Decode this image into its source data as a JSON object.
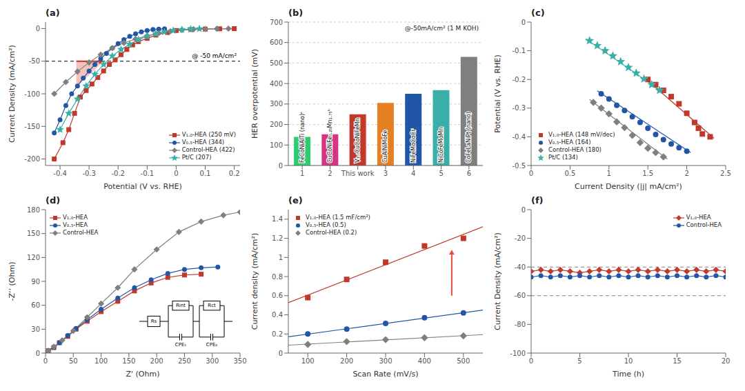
{
  "chart_data": [
    {
      "type": "line",
      "title": "(a)",
      "x_label": "Potential (V vs. RHE)",
      "y_label": "Current Density (mA/cm²)",
      "xlim": [
        -0.45,
        0.22
      ],
      "ylim": [
        -210,
        10
      ],
      "xticks": [
        -0.4,
        -0.3,
        -0.2,
        -0.1,
        0,
        0.1,
        0.2
      ],
      "yticks": [
        -200,
        -150,
        -100,
        -50,
        0
      ],
      "grid": false,
      "legend": "lower right",
      "hlines": [
        {
          "y": -50,
          "label": "@ -50 mA/cm²",
          "color": "black",
          "line_style": "dashed"
        }
      ],
      "highlight": {
        "x": [
          -0.344,
          -0.25,
          -0.344
        ],
        "y": [
          -50,
          -50,
          -90
        ],
        "color": "#e74c3c"
      },
      "arrow": {
        "x": [
          -0.344,
          -0.25
        ],
        "y": [
          -50,
          -50
        ],
        "color": "#c0392b"
      },
      "series": [
        {
          "name": "V₁.₀-HEA (250 mV)",
          "color": "#c0392b",
          "marker": "square",
          "x": [
            -0.42,
            -0.39,
            -0.37,
            -0.35,
            -0.33,
            -0.31,
            -0.29,
            -0.27,
            -0.25,
            -0.23,
            -0.21,
            -0.19,
            -0.17,
            -0.15,
            -0.13,
            -0.1,
            -0.07,
            -0.03,
            0.0,
            0.05,
            0.1,
            0.15,
            0.2
          ],
          "values": [
            -200,
            -175,
            -155,
            -130,
            -105,
            -95,
            -85,
            -75,
            -65,
            -55,
            -48,
            -40,
            -32,
            -25,
            -20,
            -15,
            -10,
            -6,
            -3,
            -1.5,
            -0.8,
            -0.3,
            -0.1
          ]
        },
        {
          "name": "V₀.₅-HEA (344)",
          "color": "#2155a5",
          "marker": "circle",
          "x": [
            -0.42,
            -0.4,
            -0.38,
            -0.36,
            -0.34,
            -0.32,
            -0.3,
            -0.28,
            -0.26,
            -0.24,
            -0.22,
            -0.2,
            -0.18,
            -0.16,
            -0.14,
            -0.12,
            -0.1,
            -0.08,
            -0.06,
            -0.04
          ],
          "values": [
            -160,
            -140,
            -118,
            -100,
            -88,
            -76,
            -65,
            -55,
            -46,
            -38,
            -30,
            -23,
            -17,
            -12,
            -8,
            -5,
            -3,
            -1.5,
            -0.8,
            -0.3
          ]
        },
        {
          "name": "Control-HEA (422)",
          "color": "#7f7f7f",
          "marker": "diamond",
          "x": [
            -0.42,
            -0.38,
            -0.34,
            -0.3,
            -0.26,
            -0.22,
            -0.18,
            -0.14,
            -0.1,
            -0.06,
            -0.02,
            0.02,
            0.06,
            0.1,
            0.14,
            0.18
          ],
          "values": [
            -100,
            -82,
            -66,
            -52,
            -40,
            -30,
            -22,
            -16,
            -11,
            -7,
            -4,
            -2,
            -1,
            -0.5,
            -0.2,
            -0.1
          ]
        },
        {
          "name": "Pt/C (207)",
          "color": "#3aafa9",
          "marker": "star",
          "x": [
            -0.4,
            -0.37,
            -0.34,
            -0.31,
            -0.28,
            -0.25,
            -0.22,
            -0.19,
            -0.16,
            -0.13,
            -0.1,
            -0.07,
            -0.04,
            -0.01,
            0.02,
            0.05,
            0.08
          ],
          "values": [
            -155,
            -130,
            -108,
            -88,
            -70,
            -55,
            -42,
            -32,
            -24,
            -17,
            -12,
            -8,
            -5,
            -3,
            -1.5,
            -0.8,
            -0.3
          ]
        }
      ]
    },
    {
      "type": "bar",
      "title": "(b)",
      "y_label": "HER overpotential (mV)",
      "categories": [
        "1",
        "2",
        "This work",
        "3",
        "4",
        "5",
        "6"
      ],
      "values": [
        140,
        152,
        250,
        305,
        350,
        368,
        530
      ],
      "colors": [
        "#2ecc71",
        "#d63384",
        "#c0392b",
        "#e67e22",
        "#2155a5",
        "#3aafa9",
        "#7f7f7f"
      ],
      "bar_labels": [
        "FeCoNiAlTi (nano)ᵃ",
        "CuCoNiFe₀.₂₅Mn₁.₇₅ᵇ",
        "V₁.₀CuCoNiFeMn",
        "CuAlNiMoFe",
        "NiFeMoCoCr",
        "NiCoFeMoMn",
        "CoFeLaNiPt (nano)"
      ],
      "ylim": [
        0,
        700
      ],
      "yticks": [
        0,
        100,
        200,
        300,
        400,
        500,
        600,
        700
      ],
      "grid": true,
      "annotations": [
        "@-50mA/cm² (1 M KOH)"
      ]
    },
    {
      "type": "scatter",
      "title": "(c)",
      "x_label": "Current Density (|j| mA/cm²)",
      "y_label": "Potential (V vs. RHE)",
      "xlim": [
        0.0,
        2.5
      ],
      "ylim": [
        -0.5,
        0.0
      ],
      "xticks": [
        0,
        0.5,
        1,
        1.5,
        2,
        2.5
      ],
      "yticks": [
        -0.5,
        -0.4,
        -0.3,
        -0.2,
        -0.1,
        0
      ],
      "grid": false,
      "legend": "lower left",
      "series": [
        {
          "name": "V₁.₀-HEA (148 mV/dec)",
          "color": "#c0392b",
          "marker": "square",
          "x": [
            1.5,
            1.6,
            1.7,
            1.8,
            1.9,
            2.0,
            2.1,
            2.15,
            2.2,
            2.3
          ],
          "values": [
            -0.2,
            -0.218,
            -0.238,
            -0.26,
            -0.285,
            -0.318,
            -0.35,
            -0.37,
            -0.39,
            -0.4
          ],
          "fit": {
            "x": [
              1.45,
              2.35
            ],
            "values": [
              -0.193,
              -0.405
            ]
          }
        },
        {
          "name": "V₀.₅-HEA (164)",
          "color": "#2155a5",
          "marker": "circle",
          "x": [
            0.9,
            1.0,
            1.1,
            1.2,
            1.3,
            1.4,
            1.5,
            1.6,
            1.7,
            1.8,
            1.9,
            2.0
          ],
          "values": [
            -0.25,
            -0.268,
            -0.29,
            -0.308,
            -0.33,
            -0.35,
            -0.37,
            -0.392,
            -0.41,
            -0.425,
            -0.438,
            -0.45
          ],
          "fit": {
            "x": [
              0.85,
              2.05
            ],
            "values": [
              -0.24,
              -0.455
            ]
          }
        },
        {
          "name": "Control-HEA (180)",
          "color": "#7f7f7f",
          "marker": "diamond",
          "x": [
            0.8,
            0.9,
            1.0,
            1.1,
            1.2,
            1.3,
            1.4,
            1.5,
            1.6,
            1.7
          ],
          "values": [
            -0.28,
            -0.3,
            -0.32,
            -0.348,
            -0.368,
            -0.395,
            -0.42,
            -0.44,
            -0.455,
            -0.47
          ],
          "fit": {
            "x": [
              0.75,
              1.75
            ],
            "values": [
              -0.27,
              -0.478
            ]
          }
        },
        {
          "name": "Pt/C (134)",
          "color": "#3aafa9",
          "marker": "star",
          "x": [
            0.75,
            0.85,
            0.95,
            1.05,
            1.15,
            1.25,
            1.35,
            1.45,
            1.55,
            1.65
          ],
          "values": [
            -0.065,
            -0.082,
            -0.1,
            -0.118,
            -0.138,
            -0.158,
            -0.178,
            -0.198,
            -0.218,
            -0.238
          ],
          "fit": {
            "x": [
              0.7,
              1.7
            ],
            "values": [
              -0.058,
              -0.245
            ]
          }
        }
      ]
    },
    {
      "type": "line",
      "title": "(d)",
      "x_label": "Z' (Ohm)",
      "y_label": "-Z’’ (Ohm)",
      "xlim": [
        0,
        350
      ],
      "ylim": [
        0,
        180
      ],
      "xticks": [
        0,
        50,
        100,
        150,
        200,
        250,
        300,
        350
      ],
      "yticks": [
        0,
        30,
        60,
        90,
        120,
        150,
        180
      ],
      "grid": false,
      "legend": "upper left",
      "circuit": [
        "Rs",
        "Rint",
        "CPE₁",
        "Rct",
        "CPE₂"
      ],
      "series": [
        {
          "name": "V₁.₀-HEA",
          "color": "#c0392b",
          "marker": "square",
          "x": [
            5,
            15,
            25,
            40,
            55,
            75,
            100,
            130,
            160,
            190,
            220,
            250,
            280
          ],
          "values": [
            3,
            7,
            13,
            21,
            30,
            40,
            52,
            65,
            78,
            88,
            95,
            98,
            99
          ]
        },
        {
          "name": "V₀.₅-HEA",
          "color": "#2155a5",
          "marker": "circle",
          "x": [
            5,
            15,
            25,
            40,
            55,
            75,
            100,
            130,
            160,
            190,
            220,
            250,
            280,
            310
          ],
          "values": [
            3,
            7,
            13,
            22,
            31,
            42,
            55,
            69,
            82,
            92,
            100,
            105,
            107,
            108
          ]
        },
        {
          "name": "Control-HEA",
          "color": "#7f7f7f",
          "marker": "diamond",
          "x": [
            5,
            15,
            30,
            50,
            75,
            100,
            130,
            160,
            200,
            240,
            280,
            320,
            350
          ],
          "values": [
            3,
            8,
            16,
            28,
            45,
            62,
            82,
            105,
            130,
            152,
            165,
            173,
            177
          ]
        }
      ]
    },
    {
      "type": "scatter",
      "title": "(e)",
      "x_label": "Scan Rate (mV/s)",
      "y_label": "Current density (mA/cm²)",
      "xlim": [
        50,
        550
      ],
      "ylim": [
        0,
        1.5
      ],
      "xticks": [
        100,
        200,
        300,
        400,
        500
      ],
      "yticks": [
        0,
        0.2,
        0.4,
        0.6,
        0.8,
        1,
        1.2,
        1.4
      ],
      "grid": false,
      "legend": "upper left",
      "arrow": {
        "x": [
          470,
          470
        ],
        "y": [
          0.6,
          1.08
        ],
        "color": "#e74c3c"
      },
      "series": [
        {
          "name": "V₁.₀-HEA (1.5 mF/cm²)",
          "color": "#c0392b",
          "marker": "square",
          "x": [
            100,
            200,
            300,
            400,
            500
          ],
          "values": [
            0.58,
            0.77,
            0.95,
            1.12,
            1.2
          ],
          "fit": {
            "x": [
              50,
              550
            ],
            "values": [
              0.5265,
              1.3215
            ]
          }
        },
        {
          "name": "V₀.₅-HEA (0.5)",
          "color": "#2155a5",
          "marker": "circle",
          "x": [
            100,
            200,
            300,
            400,
            500
          ],
          "values": [
            0.2,
            0.25,
            0.31,
            0.37,
            0.42
          ],
          "fit": {
            "x": [
              50,
              550
            ],
            "values": [
              0.17,
              0.45
            ]
          }
        },
        {
          "name": "Control-HEA (0.2)",
          "color": "#7f7f7f",
          "marker": "diamond",
          "x": [
            100,
            200,
            300,
            400,
            500
          ],
          "values": [
            0.09,
            0.12,
            0.14,
            0.16,
            0.18
          ],
          "fit": {
            "x": [
              50,
              550
            ],
            "values": [
              0.083,
              0.193
            ]
          }
        }
      ]
    },
    {
      "type": "line",
      "title": "(f)",
      "x_label": "Time (h)",
      "y_label": "Current Density (mA/cm²)",
      "xlim": [
        0,
        20
      ],
      "ylim": [
        -100,
        0
      ],
      "xticks": [
        0,
        5,
        10,
        15,
        20
      ],
      "yticks": [
        -100,
        -80,
        -60,
        -40,
        -20,
        0
      ],
      "grid": false,
      "legend": "upper right",
      "hlines": [
        {
          "y": -40,
          "color": "gray",
          "line_style": "dashed"
        },
        {
          "y": -60,
          "color": "gray",
          "line_style": "dashed"
        }
      ],
      "series": [
        {
          "name": "V₁.₀-HEA",
          "color": "#c0392b",
          "marker": "diamond",
          "x": [
            0,
            1,
            2,
            3,
            4,
            5,
            6,
            7,
            8,
            9,
            10,
            11,
            12,
            13,
            14,
            15,
            16,
            17,
            18,
            19,
            20
          ],
          "values": [
            -43,
            -42,
            -43,
            -42,
            -43,
            -44,
            -43,
            -42,
            -43,
            -42,
            -43,
            -42,
            -43,
            -42,
            -43,
            -42,
            -43,
            -42,
            -43,
            -42,
            -43
          ]
        },
        {
          "name": "Control-HEA",
          "color": "#2155a5",
          "marker": "circle",
          "x": [
            0,
            1,
            2,
            3,
            4,
            5,
            6,
            7,
            8,
            9,
            10,
            11,
            12,
            13,
            14,
            15,
            16,
            17,
            18,
            19,
            20
          ],
          "values": [
            -47,
            -46,
            -47,
            -46,
            -47,
            -46,
            -47,
            -46,
            -47,
            -46,
            -47,
            -46,
            -47,
            -46,
            -47,
            -46,
            -47,
            -46,
            -47,
            -46,
            -47
          ]
        }
      ]
    }
  ]
}
